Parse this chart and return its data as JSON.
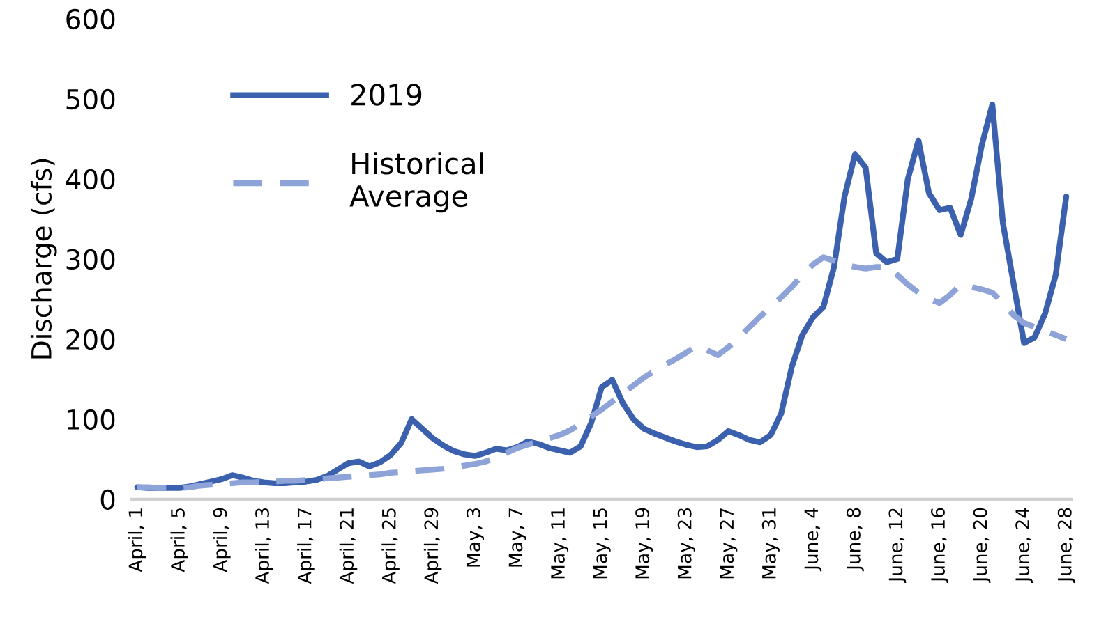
{
  "chart_data": {
    "type": "line",
    "ylabel": "Discharge (cfs)",
    "ylim": [
      0,
      600
    ],
    "yticks": [
      0,
      100,
      200,
      300,
      400,
      500,
      600
    ],
    "grid": false,
    "legend": "top left",
    "marker": "none",
    "categories": [
      "April, 1",
      null,
      null,
      null,
      "April, 5",
      null,
      null,
      null,
      "April, 9",
      null,
      null,
      null,
      "April, 13",
      null,
      null,
      null,
      "April, 17",
      null,
      null,
      null,
      "April, 21",
      null,
      null,
      null,
      "April, 25",
      null,
      null,
      null,
      "April, 29",
      null,
      null,
      null,
      "May, 3",
      null,
      null,
      null,
      "May, 7",
      null,
      null,
      null,
      "May, 11",
      null,
      null,
      null,
      "May, 15",
      null,
      null,
      null,
      "May, 19",
      null,
      null,
      null,
      "May, 23",
      null,
      null,
      null,
      "May, 27",
      null,
      null,
      null,
      "May, 31",
      null,
      null,
      null,
      "June, 4",
      null,
      null,
      null,
      "June, 8",
      null,
      null,
      null,
      "June, 12",
      null,
      null,
      null,
      "June, 16",
      null,
      null,
      null,
      "June, 20",
      null,
      null,
      null,
      "June, 24",
      null,
      null,
      null,
      "June, 28"
    ],
    "series": [
      {
        "name": "2019",
        "color": "#3b61ae",
        "line_style": "solid",
        "values": [
          15,
          14,
          14,
          14,
          14,
          16,
          19,
          22,
          25,
          30,
          27,
          23,
          21,
          20,
          20,
          21,
          22,
          24,
          29,
          37,
          45,
          47,
          41,
          46,
          55,
          70,
          100,
          88,
          76,
          67,
          60,
          56,
          54,
          58,
          63,
          61,
          65,
          72,
          69,
          64,
          61,
          58,
          66,
          95,
          140,
          149,
          120,
          100,
          88,
          82,
          77,
          72,
          68,
          65,
          66,
          74,
          85,
          80,
          74,
          71,
          80,
          107,
          165,
          205,
          227,
          240,
          290,
          378,
          431,
          414,
          307,
          296,
          300,
          400,
          448,
          382,
          361,
          364,
          330,
          375,
          442,
          493,
          345,
          270,
          195,
          202,
          232,
          280,
          378
        ]
      },
      {
        "name": "Historical\nAverage",
        "color": "#8ea4d8",
        "line_style": "dashed",
        "values": [
          15,
          15,
          14,
          14,
          14,
          15,
          17,
          18,
          19,
          20,
          21,
          21,
          22,
          22,
          23,
          23,
          24,
          25,
          26,
          27,
          28,
          29,
          30,
          31,
          33,
          34,
          35,
          36,
          37,
          38,
          40,
          42,
          44,
          47,
          52,
          58,
          64,
          68,
          72,
          76,
          80,
          86,
          94,
          103,
          112,
          122,
          132,
          142,
          152,
          160,
          168,
          175,
          183,
          192,
          186,
          180,
          190,
          202,
          215,
          228,
          240,
          252,
          265,
          280,
          293,
          302,
          298,
          293,
          290,
          288,
          290,
          290,
          280,
          268,
          258,
          250,
          245,
          255,
          268,
          265,
          262,
          258,
          245,
          230,
          220,
          215,
          210,
          205,
          200
        ]
      }
    ]
  }
}
